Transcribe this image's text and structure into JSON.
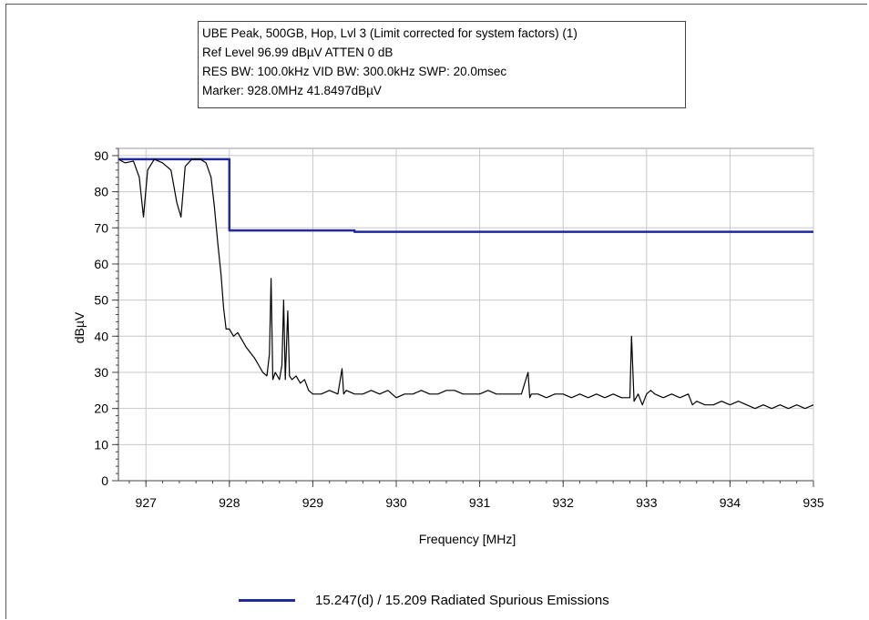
{
  "info_box": {
    "lines": [
      "UBE Peak, 500GB, Hop, Lvl 3 (Limit corrected for system factors) (1)",
      "Ref Level 96.99 dBµV    ATTEN 0 dB",
      "RES BW: 100.0kHz  VID BW: 300.0kHz  SWP: 20.0msec",
      "Marker: 928.0MHz  41.8497dBµV"
    ]
  },
  "chart_data": {
    "type": "line",
    "xlabel": "Frequency [MHz]",
    "ylabel": "dBµV",
    "xlim": [
      926.67,
      935
    ],
    "ylim": [
      0,
      92
    ],
    "x_ticks": [
      927,
      928,
      929,
      930,
      931,
      932,
      933,
      934,
      935
    ],
    "y_ticks": [
      0,
      10,
      20,
      30,
      40,
      50,
      60,
      70,
      80,
      90
    ],
    "grid": true,
    "legend_position": "bottom",
    "series": [
      {
        "name": "15.247(d) / 15.209 Radiated Spurious Emissions",
        "color": "#1f2a9e",
        "x": [
          926.67,
          928.0,
          928.0,
          929.5,
          929.5,
          935.0
        ],
        "y": [
          89.0,
          89.0,
          69.3,
          69.3,
          68.9,
          68.9
        ]
      },
      {
        "color": "#000000",
        "x": [
          926.67,
          926.75,
          926.85,
          926.92,
          926.97,
          927.02,
          927.1,
          927.2,
          927.3,
          927.37,
          927.42,
          927.47,
          927.55,
          927.65,
          927.72,
          927.78,
          927.82,
          927.86,
          927.9,
          927.93,
          927.96,
          928.0,
          928.05,
          928.1,
          928.15,
          928.2,
          928.3,
          928.35,
          928.4,
          928.45,
          928.48,
          928.5,
          928.52,
          928.55,
          928.6,
          928.63,
          928.65,
          928.67,
          928.7,
          928.72,
          928.75,
          928.8,
          928.85,
          928.9,
          928.95,
          929.0,
          929.1,
          929.2,
          929.3,
          929.35,
          929.37,
          929.4,
          929.5,
          929.6,
          929.7,
          929.8,
          929.9,
          930.0,
          930.1,
          930.2,
          930.3,
          930.4,
          930.5,
          930.6,
          930.7,
          930.8,
          930.9,
          931.0,
          931.1,
          931.2,
          931.3,
          931.4,
          931.5,
          931.58,
          931.6,
          931.62,
          931.7,
          931.8,
          931.9,
          932.0,
          932.1,
          932.2,
          932.3,
          932.4,
          932.5,
          932.6,
          932.7,
          932.8,
          932.82,
          932.85,
          932.9,
          932.95,
          933.0,
          933.05,
          933.1,
          933.2,
          933.3,
          933.4,
          933.5,
          933.55,
          933.6,
          933.7,
          933.8,
          933.9,
          934.0,
          934.1,
          934.2,
          934.3,
          934.4,
          934.5,
          934.6,
          934.7,
          934.8,
          934.9,
          935.0
        ],
        "y": [
          89,
          88,
          88.5,
          84,
          73,
          86,
          89,
          88,
          86,
          77,
          73,
          87,
          89,
          89,
          88,
          84,
          76,
          66,
          57,
          48,
          42,
          42,
          40,
          41,
          39,
          37,
          34,
          32,
          30,
          29,
          35,
          56,
          28,
          30,
          28,
          32,
          50,
          28,
          47,
          29,
          28,
          29,
          27,
          28,
          25,
          24,
          24,
          25,
          24,
          31,
          24,
          25,
          24,
          24,
          25,
          24,
          25,
          23,
          24,
          24,
          25,
          24,
          24,
          25,
          25,
          24,
          24,
          24,
          25,
          24,
          24,
          24,
          24,
          30,
          23,
          24,
          24,
          23,
          24,
          24,
          23,
          24,
          23,
          24,
          23,
          24,
          23,
          23,
          40,
          22,
          24,
          21,
          24,
          25,
          24,
          23,
          24,
          23,
          24,
          21,
          22,
          21,
          21,
          22,
          21,
          22,
          21,
          20,
          21,
          20,
          21,
          20,
          21,
          20,
          21
        ]
      }
    ]
  }
}
